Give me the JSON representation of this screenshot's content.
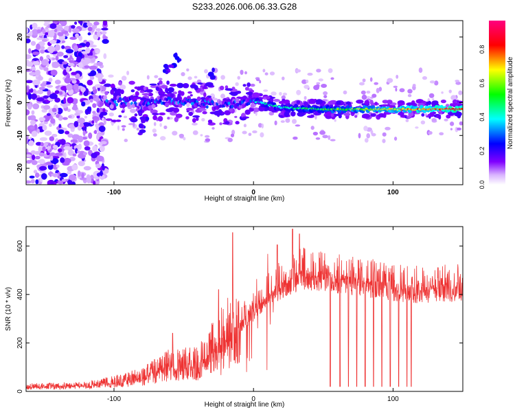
{
  "title": "S233.2026.006.06.33.G28",
  "chart_data": [
    {
      "type": "heatmap",
      "xlabel": "Height of straight line (km)",
      "ylabel": "Frequency (Hz)",
      "xlim": [
        -163,
        150
      ],
      "ylim": [
        -25,
        25
      ],
      "xticks": [
        -100,
        0,
        100
      ],
      "yticks": [
        -20,
        -10,
        0,
        10,
        20
      ],
      "colorbar": {
        "label": "Normalized spectral amplitude",
        "range": [
          0,
          0.97
        ],
        "ticks": [
          "0.0",
          "0.2",
          "0.4",
          "0.6",
          "0.8"
        ],
        "colormap": [
          "#ffffff",
          "#8000ff",
          "#0000ff",
          "#00ffff",
          "#00ff00",
          "#ffff00",
          "#ff0000",
          "#ff0080"
        ]
      },
      "ridge": [
        {
          "x": -110,
          "y": 1
        },
        {
          "x": -100,
          "y": 0
        },
        {
          "x": -90,
          "y": 0.5
        },
        {
          "x": -80,
          "y": -1
        },
        {
          "x": -60,
          "y": 1
        },
        {
          "x": -40,
          "y": 0
        },
        {
          "x": -20,
          "y": -1
        },
        {
          "x": -5,
          "y": 0
        },
        {
          "x": 0,
          "y": 0.5
        },
        {
          "x": 20,
          "y": -1.5
        },
        {
          "x": 50,
          "y": -2
        },
        {
          "x": 100,
          "y": -2
        },
        {
          "x": 150,
          "y": -2
        }
      ]
    },
    {
      "type": "line",
      "xlabel": "Height of straight line (km)",
      "ylabel": "SNR (10 * v/v)",
      "xlim": [
        -163,
        150
      ],
      "ylim": [
        0,
        680
      ],
      "xticks": [
        -100,
        0,
        100
      ],
      "yticks": [
        0,
        200,
        400,
        600
      ],
      "color": "#ee3333",
      "envelope": [
        {
          "x": -163,
          "y": 20
        },
        {
          "x": -120,
          "y": 25
        },
        {
          "x": -100,
          "y": 40
        },
        {
          "x": -80,
          "y": 60
        },
        {
          "x": -60,
          "y": 110
        },
        {
          "x": -40,
          "y": 120
        },
        {
          "x": -25,
          "y": 200
        },
        {
          "x": -10,
          "y": 290
        },
        {
          "x": 0,
          "y": 350
        },
        {
          "x": 10,
          "y": 420
        },
        {
          "x": 20,
          "y": 460
        },
        {
          "x": 35,
          "y": 510
        },
        {
          "x": 50,
          "y": 490
        },
        {
          "x": 80,
          "y": 470
        },
        {
          "x": 100,
          "y": 450
        },
        {
          "x": 120,
          "y": 440
        },
        {
          "x": 150,
          "y": 450
        }
      ],
      "spike_peaks": [
        {
          "x": -58,
          "y": 240
        },
        {
          "x": -15,
          "y": 655
        },
        {
          "x": -25,
          "y": 420
        },
        {
          "x": 17,
          "y": 605
        },
        {
          "x": 28,
          "y": 670
        },
        {
          "x": 33,
          "y": 650
        }
      ],
      "dropouts": [
        {
          "x": 55,
          "y": 20
        },
        {
          "x": 62,
          "y": 20
        },
        {
          "x": 68,
          "y": 25
        },
        {
          "x": 74,
          "y": 20
        },
        {
          "x": 80,
          "y": 20
        },
        {
          "x": 86,
          "y": 25
        },
        {
          "x": 92,
          "y": 20
        },
        {
          "x": 98,
          "y": 20
        },
        {
          "x": 104,
          "y": 20
        },
        {
          "x": 110,
          "y": 20
        },
        {
          "x": 113,
          "y": 20
        }
      ]
    }
  ]
}
